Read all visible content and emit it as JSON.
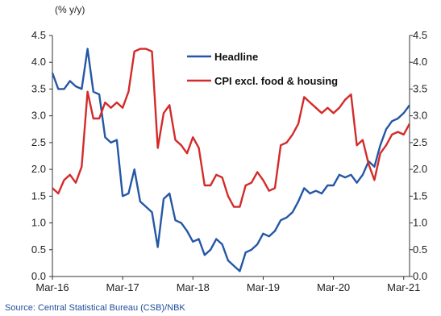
{
  "chart_data": {
    "type": "line",
    "unit_label": "(% y/y)",
    "source": "Source: Central Statistical Bureau (CSB)/NBK",
    "ylim": [
      0,
      4.5
    ],
    "y_ticks": [
      "0.0",
      "0.5",
      "1.0",
      "1.5",
      "2.0",
      "2.5",
      "3.0",
      "3.5",
      "4.0",
      "4.5"
    ],
    "x_ticks": [
      "Mar-16",
      "Mar-17",
      "Mar-18",
      "Mar-19",
      "Mar-20",
      "Mar-21"
    ],
    "grid": false,
    "legend_position": "top-right",
    "series": [
      {
        "name": "Headline",
        "color": "#2457a6",
        "values": [
          3.8,
          3.5,
          3.5,
          3.65,
          3.55,
          3.5,
          4.25,
          3.45,
          3.4,
          2.6,
          2.5,
          2.55,
          1.5,
          1.55,
          2.0,
          1.4,
          1.3,
          1.2,
          0.55,
          1.45,
          1.55,
          1.05,
          1.0,
          0.85,
          0.65,
          0.7,
          0.4,
          0.5,
          0.7,
          0.6,
          0.3,
          0.2,
          0.1,
          0.45,
          0.5,
          0.6,
          0.8,
          0.75,
          0.85,
          1.05,
          1.1,
          1.2,
          1.4,
          1.65,
          1.55,
          1.6,
          1.55,
          1.7,
          1.7,
          1.9,
          1.85,
          1.9,
          1.75,
          1.9,
          2.15,
          2.05,
          2.45,
          2.75,
          2.9,
          2.95,
          3.05,
          3.2
        ]
      },
      {
        "name": "CPI excl. food & housing",
        "color": "#d42a2a",
        "values": [
          1.65,
          1.55,
          1.8,
          1.9,
          1.75,
          2.05,
          3.45,
          2.95,
          2.95,
          3.25,
          3.15,
          3.25,
          3.15,
          3.45,
          4.2,
          4.25,
          4.25,
          4.2,
          2.4,
          3.05,
          3.2,
          2.55,
          2.45,
          2.3,
          2.6,
          2.4,
          1.7,
          1.7,
          1.9,
          1.85,
          1.5,
          1.3,
          1.3,
          1.7,
          1.75,
          1.95,
          1.8,
          1.6,
          1.65,
          2.45,
          2.5,
          2.65,
          2.85,
          3.35,
          3.25,
          3.15,
          3.05,
          3.15,
          3.05,
          3.15,
          3.3,
          3.4,
          2.45,
          2.55,
          2.1,
          1.8,
          2.3,
          2.45,
          2.65,
          2.7,
          2.65,
          2.85
        ]
      }
    ]
  }
}
